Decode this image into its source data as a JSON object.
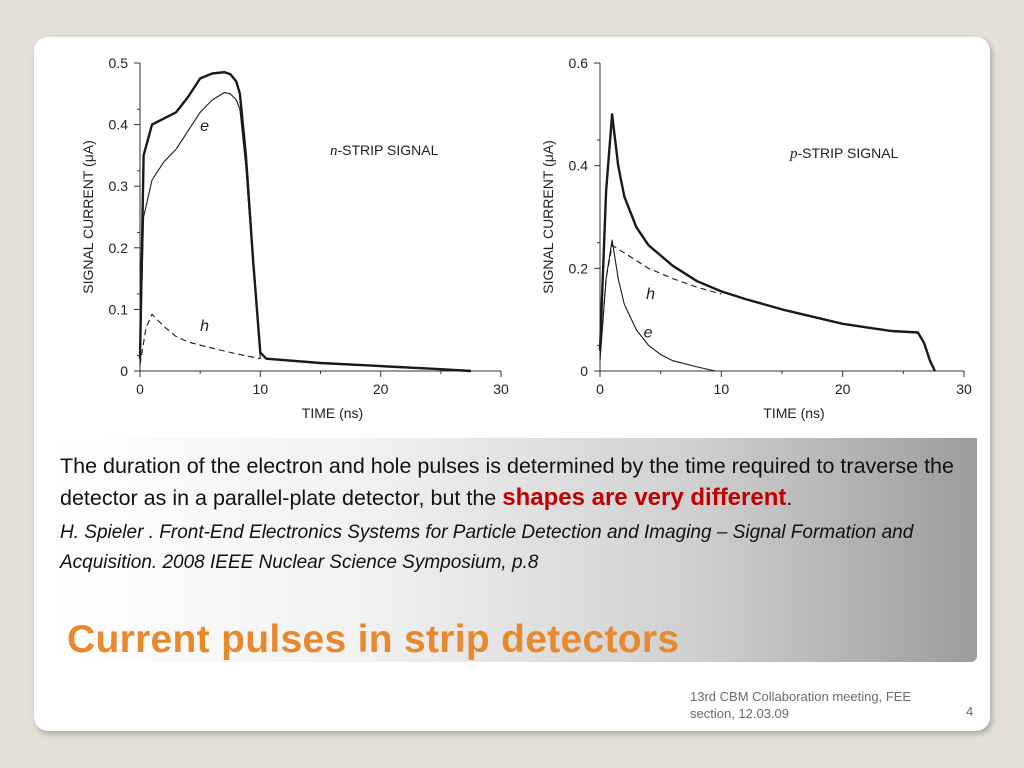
{
  "slide": {
    "title": "Current pulses in strip detectors",
    "body_part1": "The duration of the electron and hole pulses is  determined by the time required to traverse the detector  as in a parallel-plate detector, but the ",
    "body_highlight": "shapes are very different",
    "body_end": ".",
    "citation": "H. Spieler . Front-End Electronics Systems for Particle Detection and Imaging – Signal Formation and Acquisition. 2008 IEEE Nuclear Science Symposium, p.8",
    "footer": "13rd CBM Collaboration meeting, FEE section, 12.03.09",
    "page_number": "4",
    "colors": {
      "title": "#e8892e",
      "highlight": "#c00000"
    }
  },
  "chart_data": [
    {
      "type": "line",
      "annotation": "n-STRIP SIGNAL",
      "annotation_prefix": "n",
      "annotation_suffix": "-STRIP SIGNAL",
      "xlabel": "TIME (ns)",
      "ylabel": "SIGNAL CURRENT (μA)",
      "xlim": [
        0,
        30
      ],
      "ylim": [
        0,
        0.5
      ],
      "xticks": [
        "0",
        "10",
        "20",
        "30"
      ],
      "yticks": [
        "0",
        "0.1",
        "0.2",
        "0.3",
        "0.4",
        "0.5"
      ],
      "series": [
        {
          "name": "",
          "style": "solid-thick",
          "x": [
            0,
            0.3,
            1,
            1.5,
            2,
            3,
            4,
            5,
            6,
            7,
            7.5,
            8,
            8.3,
            8.8,
            9.4,
            10,
            10.5,
            15,
            20,
            25,
            27.5
          ],
          "y": [
            0.02,
            0.35,
            0.4,
            0.405,
            0.41,
            0.42,
            0.445,
            0.475,
            0.483,
            0.485,
            0.482,
            0.47,
            0.45,
            0.35,
            0.18,
            0.03,
            0.02,
            0.013,
            0.008,
            0.003,
            0
          ]
        },
        {
          "name": "e",
          "label": "e",
          "label_x": 5,
          "label_y": 0.39,
          "style": "solid-thin",
          "x": [
            0,
            0.3,
            1,
            2,
            3,
            4,
            5,
            6,
            7,
            7.5,
            8,
            8.3,
            8.8,
            9.4,
            10
          ],
          "y": [
            0.01,
            0.25,
            0.31,
            0.34,
            0.36,
            0.39,
            0.42,
            0.44,
            0.452,
            0.45,
            0.44,
            0.425,
            0.33,
            0.17,
            0.02
          ]
        },
        {
          "name": "h",
          "label": "h",
          "label_x": 5,
          "label_y": 0.065,
          "style": "dashed",
          "x": [
            0,
            0.5,
            1,
            2,
            3,
            4,
            6,
            8,
            10
          ],
          "y": [
            0.01,
            0.07,
            0.092,
            0.072,
            0.056,
            0.047,
            0.037,
            0.028,
            0.02
          ]
        }
      ]
    },
    {
      "type": "line",
      "annotation": "p-STRIP SIGNAL",
      "annotation_prefix": "p",
      "annotation_suffix": "-STRIP SIGNAL",
      "xlabel": "TIME (ns)",
      "ylabel": "SIGNAL CURRENT (μA)",
      "xlim": [
        0,
        30
      ],
      "ylim": [
        0,
        0.6
      ],
      "xticks": [
        "0",
        "10",
        "20",
        "30"
      ],
      "yticks": [
        "0",
        "0.2",
        "0.4",
        "0.6"
      ],
      "series": [
        {
          "name": "",
          "style": "solid-thick",
          "x": [
            0,
            0.5,
            1,
            1.5,
            2,
            3,
            4,
            6,
            8,
            10,
            12,
            15,
            18,
            20,
            22,
            24,
            25.5,
            26.2,
            26.7,
            27.2,
            27.6
          ],
          "y": [
            0.04,
            0.35,
            0.5,
            0.4,
            0.34,
            0.28,
            0.245,
            0.205,
            0.175,
            0.155,
            0.14,
            0.12,
            0.103,
            0.092,
            0.085,
            0.078,
            0.076,
            0.075,
            0.055,
            0.02,
            0
          ]
        },
        {
          "name": "h",
          "label": "h",
          "label_x": 3.8,
          "label_y": 0.14,
          "style": "dashed",
          "x": [
            0,
            0.5,
            1,
            2,
            4,
            6,
            8,
            10
          ],
          "y": [
            0.03,
            0.18,
            0.245,
            0.23,
            0.2,
            0.18,
            0.163,
            0.15
          ]
        },
        {
          "name": "e",
          "label": "e",
          "label_x": 3.6,
          "label_y": 0.065,
          "style": "solid-thin",
          "x": [
            0,
            0.5,
            1,
            1.5,
            2,
            3,
            4,
            5,
            6,
            8,
            9.5
          ],
          "y": [
            0.02,
            0.18,
            0.255,
            0.18,
            0.13,
            0.08,
            0.05,
            0.032,
            0.02,
            0.008,
            0
          ]
        }
      ]
    }
  ]
}
